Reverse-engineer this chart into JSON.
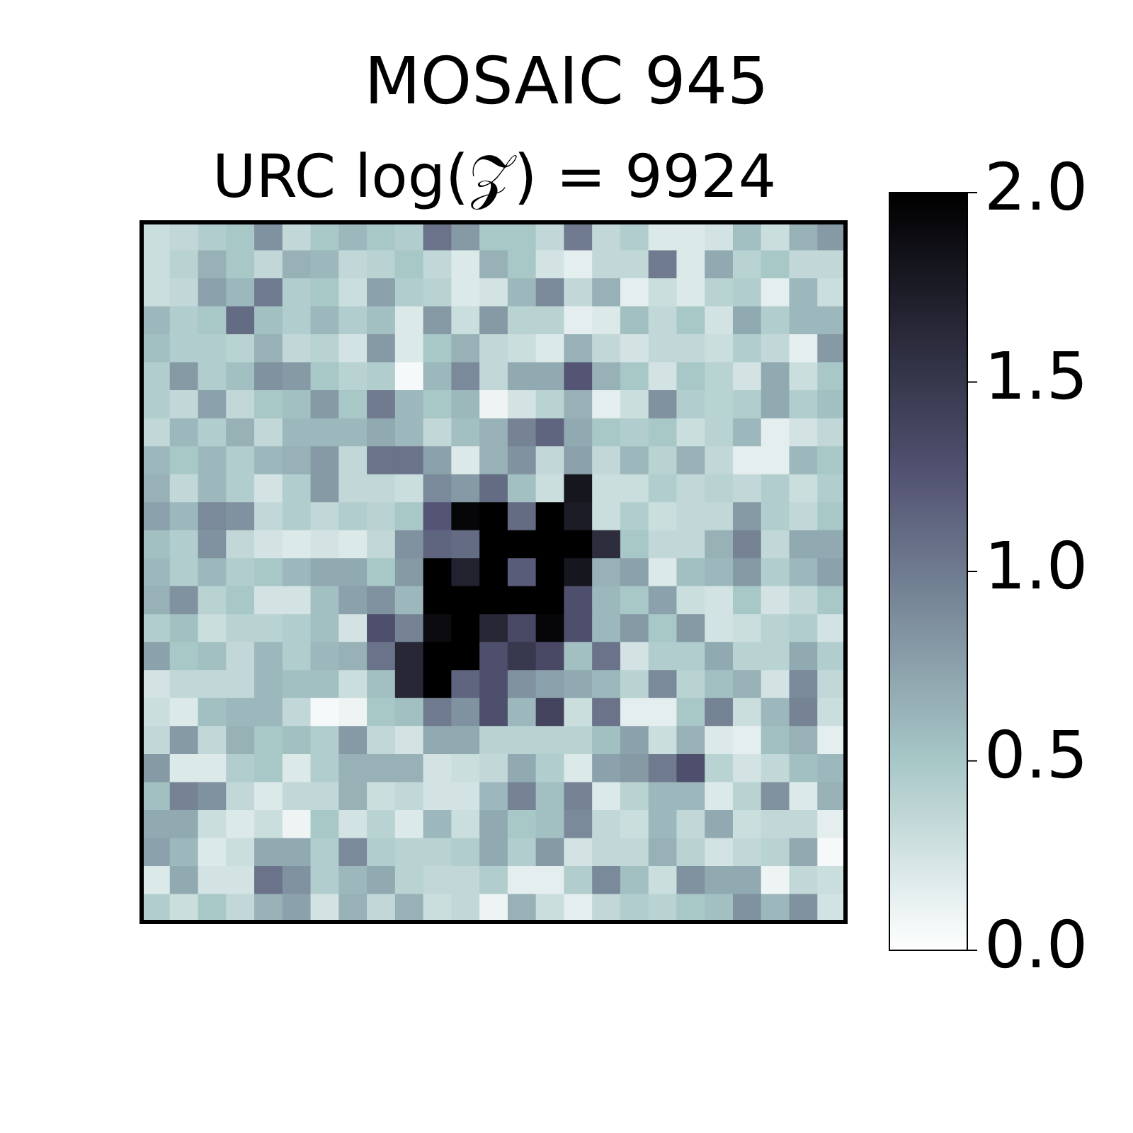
{
  "chart_data": {
    "type": "heatmap",
    "title": "MOSAIC 945",
    "subtitle": "URC log(𝒵) = 9924",
    "categories": [
      null,
      null,
      null,
      null,
      null,
      null,
      null,
      null,
      null,
      null,
      null,
      null,
      null,
      null,
      null,
      null,
      null,
      null,
      null,
      null,
      null,
      null,
      null,
      null,
      null
    ],
    "y_categories": [
      null,
      null,
      null,
      null,
      null,
      null,
      null,
      null,
      null,
      null,
      null,
      null,
      null,
      null,
      null,
      null,
      null,
      null,
      null,
      null,
      null,
      null,
      null,
      null,
      null
    ],
    "tick_labels": false,
    "clim": [
      0,
      2
    ],
    "cticks": [
      {
        "value": 0,
        "label": "0.0"
      },
      0.5,
      {
        "value": 1,
        "label": "1.0"
      },
      1.5,
      {
        "value": 2,
        "label": "2.0"
      }
    ],
    "cells": [
      [
        0.3,
        0.35,
        0.45,
        0.5,
        0.85,
        0.35,
        0.5,
        0.6,
        0.5,
        0.45,
        1.05,
        0.8,
        0.5,
        0.5,
        0.35,
        1.0,
        0.35,
        0.45,
        0.2,
        0.2,
        0.25,
        0.55,
        0.3,
        0.65,
        0.8
      ],
      [
        0.3,
        0.4,
        0.65,
        0.5,
        0.35,
        0.65,
        0.6,
        0.35,
        0.4,
        0.5,
        0.35,
        0.2,
        0.65,
        0.5,
        0.25,
        0.15,
        0.35,
        0.35,
        1.0,
        0.2,
        0.7,
        0.4,
        0.5,
        0.35,
        0.35
      ],
      [
        0.3,
        0.35,
        0.75,
        0.6,
        1.0,
        0.45,
        0.5,
        0.3,
        0.75,
        0.45,
        0.4,
        0.2,
        0.25,
        0.6,
        0.9,
        0.35,
        0.65,
        0.15,
        0.3,
        0.2,
        0.4,
        0.45,
        0.15,
        0.6,
        0.3
      ],
      [
        0.6,
        0.45,
        0.5,
        1.1,
        0.55,
        0.45,
        0.6,
        0.45,
        0.55,
        0.2,
        0.8,
        0.3,
        0.8,
        0.4,
        0.4,
        0.15,
        0.2,
        0.55,
        0.35,
        0.5,
        0.25,
        0.7,
        0.45,
        0.6,
        0.6
      ],
      [
        0.55,
        0.45,
        0.45,
        0.4,
        0.65,
        0.35,
        0.4,
        0.25,
        0.8,
        0.2,
        0.5,
        0.65,
        0.35,
        0.3,
        0.2,
        0.65,
        0.35,
        0.25,
        0.35,
        0.35,
        0.3,
        0.45,
        0.35,
        0.15,
        0.8
      ],
      [
        0.45,
        0.8,
        0.45,
        0.55,
        0.85,
        0.8,
        0.5,
        0.4,
        0.45,
        0.05,
        0.6,
        0.9,
        0.35,
        0.7,
        0.7,
        1.25,
        0.65,
        0.5,
        0.25,
        0.5,
        0.4,
        0.25,
        0.7,
        0.3,
        0.5
      ],
      [
        0.45,
        0.35,
        0.75,
        0.35,
        0.5,
        0.55,
        0.8,
        0.5,
        1.0,
        0.6,
        0.5,
        0.6,
        0.1,
        0.25,
        0.4,
        0.65,
        0.15,
        0.3,
        0.85,
        0.45,
        0.4,
        0.45,
        0.7,
        0.45,
        0.55
      ],
      [
        0.35,
        0.6,
        0.45,
        0.65,
        0.35,
        0.6,
        0.6,
        0.6,
        0.7,
        0.6,
        0.35,
        0.55,
        0.65,
        0.95,
        1.15,
        0.7,
        0.5,
        0.45,
        0.5,
        0.3,
        0.4,
        0.6,
        0.15,
        0.25,
        0.35
      ],
      [
        0.6,
        0.5,
        0.6,
        0.45,
        0.6,
        0.65,
        0.8,
        0.35,
        1.05,
        1.05,
        0.75,
        0.2,
        0.65,
        0.85,
        0.35,
        0.75,
        0.35,
        0.6,
        0.4,
        0.65,
        0.35,
        0.15,
        0.15,
        0.6,
        0.5
      ],
      [
        0.65,
        0.35,
        0.6,
        0.45,
        0.25,
        0.45,
        0.8,
        0.35,
        0.35,
        0.3,
        0.9,
        0.8,
        1.1,
        0.55,
        0.3,
        1.8,
        0.3,
        0.3,
        0.45,
        0.35,
        0.4,
        0.35,
        0.45,
        0.3,
        0.45
      ],
      [
        0.75,
        0.6,
        0.9,
        0.85,
        0.35,
        0.45,
        0.35,
        0.45,
        0.4,
        0.5,
        1.25,
        1.95,
        2.0,
        1.1,
        2.0,
        1.75,
        0.3,
        0.45,
        0.3,
        0.35,
        0.35,
        0.8,
        0.45,
        0.35,
        0.5
      ],
      [
        0.55,
        0.45,
        0.85,
        0.35,
        0.25,
        0.2,
        0.25,
        0.2,
        0.35,
        0.85,
        1.15,
        1.1,
        2.0,
        2.0,
        2.0,
        2.0,
        1.6,
        0.5,
        0.35,
        0.35,
        0.65,
        0.95,
        0.35,
        0.7,
        0.7
      ],
      [
        0.6,
        0.45,
        0.6,
        0.45,
        0.5,
        0.6,
        0.7,
        0.7,
        0.5,
        0.8,
        2.0,
        1.7,
        2.0,
        1.2,
        2.0,
        1.8,
        0.65,
        0.75,
        0.2,
        0.55,
        0.6,
        0.8,
        0.45,
        0.6,
        0.75
      ],
      [
        0.65,
        0.85,
        0.4,
        0.5,
        0.25,
        0.25,
        0.55,
        0.75,
        0.85,
        0.6,
        2.0,
        2.0,
        2.0,
        2.0,
        2.0,
        1.3,
        0.6,
        0.5,
        0.75,
        0.3,
        0.25,
        0.5,
        0.25,
        0.35,
        0.5
      ],
      [
        0.45,
        0.55,
        0.3,
        0.4,
        0.4,
        0.45,
        0.55,
        0.25,
        1.3,
        0.95,
        1.9,
        2.0,
        1.65,
        1.35,
        1.95,
        1.3,
        0.6,
        0.8,
        0.5,
        0.8,
        0.25,
        0.3,
        0.4,
        0.45,
        0.25
      ],
      [
        0.75,
        0.5,
        0.55,
        0.35,
        0.6,
        0.45,
        0.6,
        0.65,
        1.05,
        1.65,
        2.0,
        2.0,
        1.3,
        1.5,
        1.35,
        0.55,
        1.05,
        0.25,
        0.45,
        0.45,
        0.7,
        0.4,
        0.4,
        0.7,
        0.45
      ],
      [
        0.25,
        0.35,
        0.35,
        0.35,
        0.6,
        0.55,
        0.55,
        0.3,
        0.55,
        1.65,
        2.0,
        1.15,
        1.3,
        0.85,
        0.75,
        0.7,
        0.6,
        0.4,
        0.9,
        0.4,
        0.55,
        0.65,
        0.25,
        0.9,
        0.35
      ],
      [
        0.3,
        0.2,
        0.55,
        0.6,
        0.6,
        0.35,
        0.05,
        0.1,
        0.5,
        0.55,
        1.0,
        0.85,
        1.3,
        0.6,
        1.4,
        0.3,
        1.05,
        0.15,
        0.15,
        0.5,
        0.95,
        0.3,
        0.6,
        0.95,
        0.3
      ],
      [
        0.35,
        0.8,
        0.35,
        0.65,
        0.5,
        0.55,
        0.45,
        0.8,
        0.35,
        0.25,
        0.7,
        0.7,
        0.4,
        0.4,
        0.4,
        0.4,
        0.55,
        0.75,
        0.3,
        0.65,
        0.2,
        0.15,
        0.55,
        0.65,
        0.15
      ],
      [
        0.8,
        0.2,
        0.2,
        0.45,
        0.5,
        0.2,
        0.45,
        0.65,
        0.65,
        0.65,
        0.25,
        0.3,
        0.35,
        0.7,
        0.45,
        0.2,
        0.75,
        0.8,
        1.0,
        1.3,
        0.4,
        0.25,
        0.35,
        0.55,
        0.6
      ],
      [
        0.55,
        0.95,
        0.85,
        0.35,
        0.2,
        0.35,
        0.35,
        0.65,
        0.3,
        0.35,
        0.25,
        0.25,
        0.6,
        0.95,
        0.55,
        0.95,
        0.2,
        0.4,
        0.6,
        0.6,
        0.2,
        0.4,
        0.85,
        0.2,
        0.65
      ],
      [
        0.7,
        0.7,
        0.3,
        0.2,
        0.3,
        0.1,
        0.5,
        0.25,
        0.4,
        0.2,
        0.6,
        0.3,
        0.7,
        0.5,
        0.55,
        0.9,
        0.35,
        0.3,
        0.6,
        0.35,
        0.7,
        0.3,
        0.35,
        0.35,
        0.15
      ],
      [
        0.75,
        0.6,
        0.2,
        0.3,
        0.7,
        0.7,
        0.45,
        0.9,
        0.45,
        0.4,
        0.4,
        0.45,
        0.7,
        0.45,
        0.8,
        0.25,
        0.35,
        0.35,
        0.65,
        0.4,
        0.25,
        0.35,
        0.4,
        0.7,
        0.05
      ],
      [
        0.2,
        0.7,
        0.25,
        0.25,
        1.05,
        0.85,
        0.45,
        0.6,
        0.7,
        0.4,
        0.35,
        0.35,
        0.45,
        0.15,
        0.15,
        0.45,
        0.9,
        0.55,
        0.3,
        0.85,
        0.7,
        0.7,
        0.1,
        0.35,
        0.3
      ],
      [
        0.45,
        0.3,
        0.5,
        0.35,
        0.65,
        0.75,
        0.25,
        0.65,
        0.35,
        0.65,
        0.3,
        0.35,
        0.1,
        0.65,
        0.3,
        0.15,
        0.35,
        0.45,
        0.4,
        0.5,
        0.55,
        0.85,
        0.6,
        0.85,
        0.25
      ]
    ]
  }
}
